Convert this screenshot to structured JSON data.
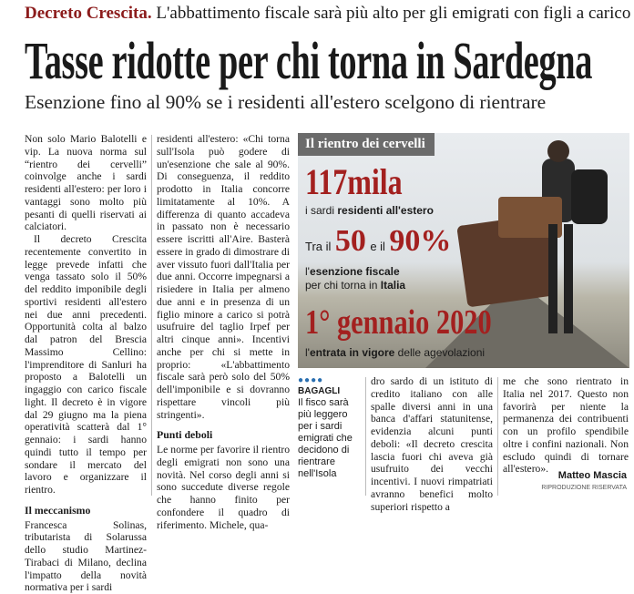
{
  "header": {
    "kicker": "Decreto Crescita.",
    "kicker_rest": "L'abbattimento fiscale sarà più alto per gli emigrati con figli a carico",
    "title": "Tasse ridotte per chi torna in Sardegna",
    "subtitle": "Esenzione fino al 90% se i residenti all'estero scelgono di rientrare"
  },
  "article": {
    "col1": {
      "text": [
        "Non solo Mario Balotelli e vip. La nuova norma sul “rientro dei cervelli” coinvolge anche i sardi residenti all'estero: per loro i vantaggi sono molto più pesanti di quelli riservati ai calciatori.",
        "Il decreto Crescita recentemente convertito in legge prevede infatti che venga tassato solo il 50% del reddito imponibile degli sportivi residenti all'estero nei due anni precedenti. Opportunità colta al balzo dal patron del Brescia Massimo Cellino: l'imprenditore di Sanluri ha proposto a Balotelli un ingaggio con carico fiscale light. Il decreto è in vigore dal 29 giugno ma la piena operatività scatterà dal 1° gennaio: i sardi hanno quindi tutto il tempo per sondare il mercato del lavoro e organizzare il rientro."
      ],
      "heading": "Il meccanismo",
      "text_after": [
        "Francesca Solinas, tributarista di Solarussa dello studio Martinez-Tirabaci di Milano, declina l'impatto della novità normativa per i sardi"
      ]
    },
    "col2": {
      "text": [
        "residenti all'estero: «Chi torna sull'Isola può godere di un'esenzione che sale al 90%. Di conseguenza, il reddito prodotto in Italia concorre limitatamente al 10%. A differenza di quanto accadeva in passato non è necessario essere iscritti all'Aire. Basterà essere in grado di dimostrare di aver vissuto fuori dall'Italia per due anni. Occorre impegnarsi a risiedere in Italia per almeno due anni e in presenza di un figlio minore a carico si potrà usufruire del taglio Irpef per altri cinque anni». Incentivi anche per chi si mette in proprio: «L'abbattimento fiscale sarà però solo del 50% dell'imponibile e si dovranno rispettare vincoli più stringenti»."
      ],
      "heading": "Punti deboli",
      "text_after": [
        "Le norme per favorire il rientro degli emigrati non sono una novità. Nel corso degli anni si sono succedute diverse regole che hanno finito per confondere il quadro di riferimento. Michele, qua-"
      ]
    },
    "col3": "dro sardo di un istituto di credito italiano con alle spalle diversi anni in una banca d'affari statunitense, evidenzia alcuni punti deboli: «Il decreto crescita lascia fuori chi aveva già usufruito dei vecchi incentivi. I nuovi rimpatriati avranno benefici molto superiori rispetto a",
    "col4": "me che sono rientrato in Italia nel 2017. Questo non favorirà per niente la permanenza dei contribuenti con un profilo spendibile oltre i confini nazionali. Non escludo quindi di tornare all'estero».",
    "byline": "Matteo Mascia",
    "rights": "RIPRODUZIONE RISERVATA"
  },
  "sidebar": {
    "label": "BAGAGLI",
    "caption": "Il fisco sarà più leggero per i sardi emigrati che decidono di rientrare nell'Isola"
  },
  "infographic": {
    "title": "Il rientro dei cervelli",
    "big1": "117mila",
    "line1_plain": "i sardi",
    "line1_bold": "residenti all'estero",
    "pre_a": "Tra il",
    "num_a": "50",
    "pre_b": "e il",
    "num_b": "90%",
    "line2_plain": "l'",
    "line2_bold": "esenzione fiscale",
    "line3_plain": "per chi torna in",
    "line3_bold": "Italia",
    "big2": "1° gennaio 2020",
    "line4_plain": "l'",
    "line4_bold": "entrata in vigore",
    "line4_end": "delle agevolazioni"
  }
}
